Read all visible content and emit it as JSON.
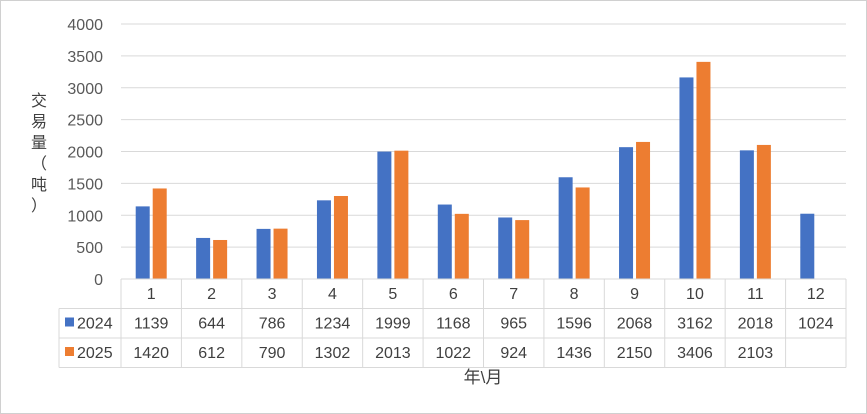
{
  "chart_data": {
    "type": "bar",
    "title": "",
    "xlabel": "年\\月",
    "ylabel": "交易量（吨）",
    "ylim": [
      0,
      4000
    ],
    "yticks": [
      0,
      500,
      1000,
      1500,
      2000,
      2500,
      3000,
      3500,
      4000
    ],
    "categories": [
      "1",
      "2",
      "3",
      "4",
      "5",
      "6",
      "7",
      "8",
      "9",
      "10",
      "11",
      "12"
    ],
    "grid": true,
    "legend": "data-table",
    "series": [
      {
        "name": "2024",
        "color": "#4472C4",
        "values": [
          1139,
          644,
          786,
          1234,
          1999,
          1168,
          965,
          1596,
          2068,
          3162,
          2018,
          1024
        ]
      },
      {
        "name": "2025",
        "color": "#ED7D31",
        "values": [
          1420,
          612,
          790,
          1302,
          2013,
          1022,
          924,
          1436,
          2150,
          3406,
          2103,
          null
        ]
      }
    ]
  }
}
